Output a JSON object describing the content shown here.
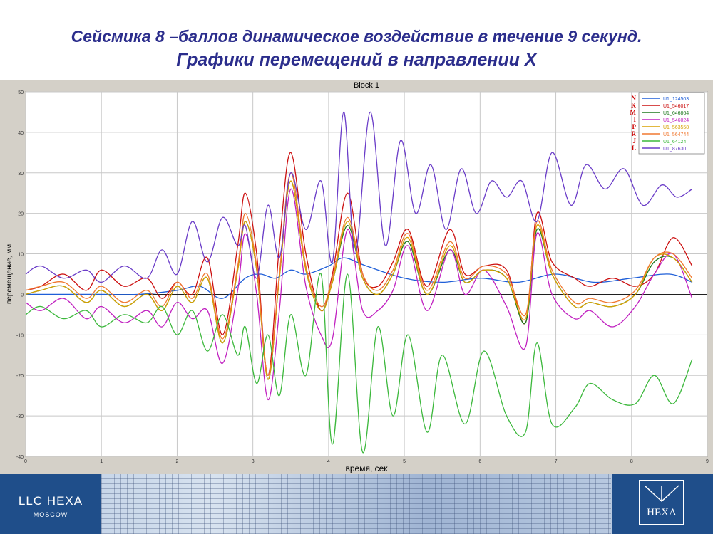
{
  "slide": {
    "title_line1": "Сейсмика 8 –баллов динамическое воздействие в течение 9 секунд.",
    "title_line2": "Графики перемещений в направлении Х"
  },
  "footer": {
    "company": "LLC  HEXA",
    "city": "MOSCOW",
    "logo_text": "HEXA"
  },
  "chart_data": {
    "type": "line",
    "title": "Block 1",
    "xlabel": "время, сек",
    "ylabel": "перемещение, мм",
    "xlim": [
      0,
      9
    ],
    "ylim": [
      -40,
      50
    ],
    "xticks": [
      0,
      1,
      2,
      3,
      4,
      5,
      6,
      7,
      8,
      9
    ],
    "yticks": [
      -40,
      -30,
      -20,
      -10,
      0,
      10,
      20,
      30,
      40,
      50
    ],
    "grid": true,
    "legend_position": "top-right",
    "colors": {
      "plot_bg": "#ffffff",
      "grid": "#c8c8c8",
      "window_bg": "#d4d0c8"
    },
    "series": [
      {
        "name": "U1_124503",
        "letter": "N",
        "color": "#1f5fd8",
        "x": [
          0,
          0.5,
          1,
          1.5,
          2,
          2.3,
          2.6,
          2.9,
          3.1,
          3.3,
          3.5,
          3.7,
          4,
          4.2,
          4.5,
          5,
          5.5,
          6,
          6.5,
          7,
          7.5,
          8,
          8.5,
          8.8
        ],
        "y": [
          0,
          0,
          0,
          0,
          1,
          2,
          -1,
          4,
          5,
          4,
          6,
          5,
          7,
          9,
          7,
          4,
          3,
          4,
          3,
          5,
          3,
          4,
          5,
          3
        ]
      },
      {
        "name": "U1_546017",
        "letter": "K",
        "color": "#cc1010",
        "x": [
          0,
          0.2,
          0.5,
          0.8,
          1,
          1.3,
          1.6,
          1.8,
          2,
          2.2,
          2.4,
          2.6,
          2.8,
          2.9,
          3.05,
          3.2,
          3.35,
          3.5,
          3.7,
          3.9,
          4.05,
          4.25,
          4.45,
          4.65,
          4.85,
          5.05,
          5.3,
          5.6,
          5.8,
          6.05,
          6.35,
          6.6,
          6.75,
          6.95,
          7.25,
          7.45,
          7.75,
          8.05,
          8.3,
          8.55,
          8.8
        ],
        "y": [
          1,
          2,
          5,
          1,
          6,
          2,
          4,
          -1,
          3,
          0,
          9,
          -10,
          12,
          25,
          10,
          -20,
          12,
          35,
          10,
          -4,
          5,
          25,
          5,
          2,
          8,
          16,
          2,
          16,
          5,
          7,
          6,
          -7,
          20,
          8,
          4,
          2,
          4,
          2,
          5,
          14,
          7
        ]
      },
      {
        "name": "U1_646864",
        "letter": "M",
        "color": "#1f7a1f",
        "x": [
          0,
          0.2,
          0.5,
          0.8,
          1,
          1.3,
          1.6,
          1.8,
          2,
          2.2,
          2.4,
          2.6,
          2.8,
          2.9,
          3.05,
          3.2,
          3.35,
          3.5,
          3.7,
          3.9,
          4.05,
          4.25,
          4.45,
          4.65,
          4.85,
          5.05,
          5.3,
          5.6,
          5.8,
          6.05,
          6.35,
          6.6,
          6.75,
          6.95,
          7.25,
          7.45,
          7.75,
          8.05,
          8.3,
          8.55,
          8.8
        ],
        "y": [
          0,
          1,
          2,
          -2,
          1,
          -3,
          0,
          -4,
          2,
          -2,
          4,
          -12,
          6,
          18,
          6,
          -21,
          4,
          28,
          6,
          -4,
          3,
          17,
          4,
          0,
          5,
          13,
          0,
          11,
          3,
          6,
          4,
          -7,
          16,
          5,
          -3,
          -2,
          -3,
          0,
          8,
          9,
          3
        ]
      },
      {
        "name": "U1_546024",
        "letter": "I",
        "color": "#c020c0",
        "x": [
          0,
          0.2,
          0.5,
          0.8,
          1,
          1.3,
          1.6,
          1.8,
          2,
          2.2,
          2.4,
          2.6,
          2.8,
          2.9,
          3.05,
          3.2,
          3.35,
          3.5,
          3.7,
          3.9,
          4.05,
          4.25,
          4.45,
          4.65,
          4.85,
          5.05,
          5.3,
          5.6,
          5.8,
          6.05,
          6.35,
          6.6,
          6.75,
          6.95,
          7.25,
          7.45,
          7.75,
          8.05,
          8.3,
          8.55,
          8.8
        ],
        "y": [
          -2,
          -4,
          -1,
          -6,
          -3,
          -7,
          -4,
          -8,
          -2,
          -6,
          -4,
          -17,
          1,
          15,
          0,
          -26,
          -4,
          26,
          2,
          -10,
          -11,
          16,
          -4,
          -4,
          1,
          12,
          -4,
          11,
          0,
          6,
          -3,
          -13,
          15,
          0,
          -6,
          -4,
          -8,
          -3,
          5,
          10,
          -1
        ]
      },
      {
        "name": "U1_563558",
        "letter": "P",
        "color": "#d8a000",
        "x": [
          0,
          0.2,
          0.5,
          0.8,
          1,
          1.3,
          1.6,
          1.8,
          2,
          2.2,
          2.4,
          2.6,
          2.8,
          2.9,
          3.05,
          3.2,
          3.35,
          3.5,
          3.7,
          3.9,
          4.05,
          4.25,
          4.45,
          4.65,
          4.85,
          5.05,
          5.3,
          5.6,
          5.8,
          6.05,
          6.35,
          6.6,
          6.75,
          6.95,
          7.25,
          7.45,
          7.75,
          8.05,
          8.3,
          8.55,
          8.8
        ],
        "y": [
          0,
          1,
          2,
          -2,
          1,
          -3,
          0,
          -4,
          2,
          -2,
          4,
          -12,
          6,
          18,
          6,
          -21,
          4,
          28,
          6,
          -4,
          3,
          18,
          4,
          0,
          5,
          14,
          0,
          12,
          3,
          6,
          4,
          -6,
          17,
          5,
          -3,
          -2,
          -3,
          0,
          9,
          9,
          3
        ]
      },
      {
        "name": "U1_564744",
        "letter": "R",
        "color": "#f07830",
        "x": [
          0,
          0.2,
          0.5,
          0.8,
          1,
          1.3,
          1.6,
          1.8,
          2,
          2.2,
          2.4,
          2.6,
          2.8,
          2.9,
          3.05,
          3.2,
          3.35,
          3.5,
          3.7,
          3.9,
          4.05,
          4.25,
          4.45,
          4.65,
          4.85,
          5.05,
          5.3,
          5.6,
          5.8,
          6.05,
          6.35,
          6.6,
          6.75,
          6.95,
          7.25,
          7.45,
          7.75,
          8.05,
          8.3,
          8.55,
          8.8
        ],
        "y": [
          1,
          2,
          3,
          -1,
          2,
          -2,
          1,
          -3,
          3,
          -1,
          5,
          -11,
          7,
          20,
          7,
          -20,
          5,
          30,
          7,
          -3,
          4,
          19,
          5,
          1,
          6,
          15,
          1,
          13,
          4,
          7,
          5,
          -5,
          18,
          6,
          -2,
          -1,
          -2,
          1,
          9,
          10,
          4
        ]
      },
      {
        "name": "U1_64124",
        "letter": "J",
        "color": "#3cb83c",
        "x": [
          0,
          0.2,
          0.5,
          0.8,
          1,
          1.3,
          1.6,
          1.8,
          2,
          2.2,
          2.4,
          2.6,
          2.8,
          2.9,
          3.05,
          3.2,
          3.35,
          3.5,
          3.7,
          3.9,
          4.05,
          4.25,
          4.45,
          4.65,
          4.85,
          5.05,
          5.3,
          5.5,
          5.8,
          6.05,
          6.35,
          6.6,
          6.75,
          6.95,
          7.25,
          7.45,
          7.75,
          8.05,
          8.3,
          8.55,
          8.8
        ],
        "y": [
          -5,
          -3,
          -6,
          -4,
          -8,
          -5,
          -7,
          -3,
          -10,
          -4,
          -14,
          -5,
          -15,
          -8,
          -22,
          -10,
          -25,
          -5,
          -20,
          5,
          -37,
          5,
          -39,
          -8,
          -30,
          -10,
          -34,
          -15,
          -32,
          -14,
          -30,
          -34,
          -12,
          -32,
          -28,
          -22,
          -26,
          -27,
          -20,
          -27,
          -16
        ]
      },
      {
        "name": "U1_87630",
        "letter": "L",
        "color": "#6a3cc8",
        "x": [
          0,
          0.2,
          0.5,
          0.8,
          1,
          1.3,
          1.6,
          1.8,
          2,
          2.2,
          2.4,
          2.6,
          2.8,
          2.9,
          3.05,
          3.2,
          3.35,
          3.5,
          3.7,
          3.9,
          4.05,
          4.2,
          4.35,
          4.55,
          4.75,
          4.95,
          5.15,
          5.35,
          5.55,
          5.75,
          5.95,
          6.15,
          6.35,
          6.55,
          6.75,
          6.95,
          7.2,
          7.4,
          7.65,
          7.9,
          8.15,
          8.4,
          8.6,
          8.8
        ],
        "y": [
          5,
          7,
          4,
          6,
          3,
          7,
          4,
          11,
          5,
          18,
          8,
          19,
          12,
          17,
          4,
          22,
          9,
          30,
          16,
          28,
          8,
          45,
          10,
          45,
          12,
          38,
          20,
          32,
          16,
          31,
          20,
          28,
          24,
          28,
          18,
          35,
          22,
          32,
          26,
          31,
          22,
          27,
          24,
          26
        ]
      }
    ]
  }
}
